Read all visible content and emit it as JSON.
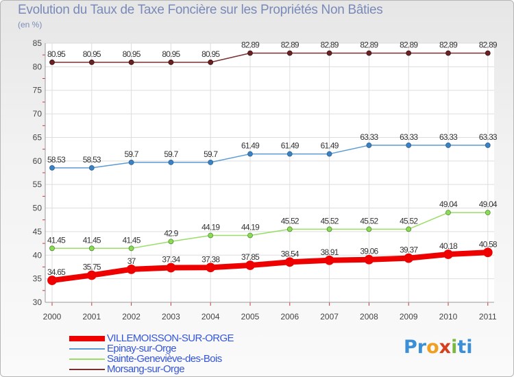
{
  "header": {
    "title": "Evolution du Taux de Taxe Foncière sur les Propriétés Non Bâties",
    "unit": "(en %)"
  },
  "logo": {
    "part1": "Pr",
    "part2": "o",
    "part3": "x",
    "part4": "i",
    "part5": "ti"
  },
  "chart_data": {
    "type": "line",
    "title": "Evolution du Taux de Taxe Foncière sur les Propriétés Non Bâties",
    "ylabel": "(en %)",
    "xlabel": "",
    "x": [
      "2000",
      "2001",
      "2002",
      "2003",
      "2004",
      "2005",
      "2006",
      "2007",
      "2008",
      "2009",
      "2010",
      "2011"
    ],
    "ylim": [
      30,
      85
    ],
    "yticks": [
      "30",
      "35",
      "40",
      "45",
      "50",
      "55",
      "60",
      "65",
      "70",
      "75",
      "80",
      "85"
    ],
    "grid": true,
    "legend_position": "bottom-left",
    "series": [
      {
        "name": "VILLEMOISSON-SUR-ORGE",
        "color": "#ee0000",
        "values": [
          34.65,
          35.75,
          37,
          37.34,
          37.38,
          37.85,
          38.54,
          38.91,
          39.06,
          39.37,
          40.18,
          40.58
        ],
        "labels": [
          "34.65",
          "35.75",
          "37",
          "37.34",
          "37.38",
          "37.85",
          "38.54",
          "38.91",
          "39.06",
          "39.37",
          "40.18",
          "40.58"
        ]
      },
      {
        "name": "Epinay-sur-Orge",
        "color": "#5b9bd5",
        "values": [
          58.53,
          58.53,
          59.7,
          59.7,
          59.7,
          61.49,
          61.49,
          61.49,
          63.33,
          63.33,
          63.33,
          63.33
        ],
        "labels": [
          "58.53",
          "58.53",
          "59.7",
          "59.7",
          "59.7",
          "61.49",
          "61.49",
          "61.49",
          "63.33",
          "63.33",
          "63.33",
          "63.33"
        ]
      },
      {
        "name": "Sainte-Geneviève-des-Bois",
        "color": "#99dd66",
        "values": [
          41.45,
          41.45,
          41.45,
          42.9,
          44.19,
          44.19,
          45.52,
          45.52,
          45.52,
          45.52,
          49.04,
          49.04
        ],
        "labels": [
          "41.45",
          "41.45",
          "41.45",
          "42.9",
          "44.19",
          "44.19",
          "45.52",
          "45.52",
          "45.52",
          "45.52",
          "49.04",
          "49.04"
        ]
      },
      {
        "name": "Morsang-sur-Orge",
        "color": "#7a2e2e",
        "values": [
          80.95,
          80.95,
          80.95,
          80.95,
          80.95,
          82.89,
          82.89,
          82.89,
          82.89,
          82.89,
          82.89,
          82.89
        ],
        "labels": [
          "80.95",
          "80.95",
          "80.95",
          "80.95",
          "80.95",
          "82.89",
          "82.89",
          "82.89",
          "82.89",
          "82.89",
          "82.89",
          "82.89"
        ]
      }
    ]
  }
}
